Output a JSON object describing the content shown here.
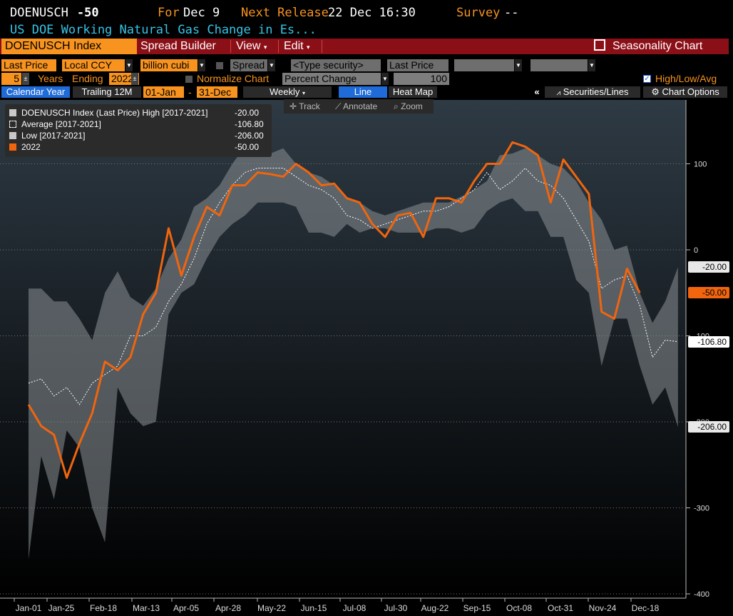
{
  "header": {
    "ticker": "DOENUSCH",
    "value": "-50",
    "for_label": "For",
    "for_date": "Dec 9",
    "next_label": "Next Release",
    "next_date": "22 Dec 16:30",
    "survey_label": "Survey",
    "survey_value": "--",
    "description": "US DOE Working Natural Gas Change in Es..."
  },
  "toolbar": {
    "index_field": "DOENUSCH Index",
    "spread_builder": "Spread Builder",
    "view": "View",
    "edit": "Edit",
    "seasonality": "Seasonality Chart",
    "field": "Last Price",
    "currency": "Local CCY",
    "units": "billion cubi",
    "spread": "Spread",
    "type_security": "<Type security>",
    "last_price_2": "Last Price",
    "years_n": "5",
    "years_label": "Years",
    "ending_label": "Ending",
    "ending_year": "2022",
    "normalize_label": "Normalize Chart",
    "percent_change": "Percent Change",
    "norm_value": "100",
    "hla_label": "High/Low/Avg",
    "calendar_year": "Calendar Year",
    "trailing": "Trailing 12M",
    "start_date": "01-Jan",
    "dash": "-",
    "end_date": "31-Dec",
    "weekly": "Weekly",
    "line": "Line",
    "heat_map": "Heat Map",
    "collapse": "«",
    "securities_lines": "Securities/Lines",
    "chart_options": "Chart Options",
    "track": "Track",
    "annotate": "Annotate",
    "zoom": "Zoom"
  },
  "legend": [
    {
      "label": "DOENUSCH Index (Last Price) High [2017-2021]",
      "value": "-20.00",
      "color": "#c8c8c8"
    },
    {
      "label": "Average  [2017-2021]",
      "value": "-106.80",
      "color": "#ffffff"
    },
    {
      "label": "Low  [2017-2021]",
      "value": "-206.00",
      "color": "#c8c8c8"
    },
    {
      "label": "2022",
      "value": "-50.00",
      "color": "#f0650e"
    }
  ],
  "badges": [
    {
      "text": "-20.00",
      "value": -20,
      "bg": "#e8e8e8",
      "fg": "#000"
    },
    {
      "text": "-50.00",
      "value": -50,
      "bg": "#f0650e",
      "fg": "#000"
    },
    {
      "text": "-106.80",
      "value": -106.8,
      "bg": "#ffffff",
      "fg": "#000"
    },
    {
      "text": "-206.00",
      "value": -206,
      "bg": "#e8e8e8",
      "fg": "#000"
    }
  ],
  "chart_data": {
    "type": "line",
    "x_tick_labels": [
      "Jan-01",
      "Jan-25",
      "Feb-18",
      "Mar-13",
      "Apr-05",
      "Apr-28",
      "May-22",
      "Jun-15",
      "Jul-08",
      "Jul-30",
      "Aug-22",
      "Sep-15",
      "Oct-08",
      "Oct-31",
      "Nov-24",
      "Dec-18"
    ],
    "y_ticks": [
      100,
      0,
      -100,
      -200,
      -300,
      -400
    ],
    "y_tick_labels": [
      "100",
      "0",
      "-100",
      "-200",
      "-300",
      "-400"
    ],
    "ylim": [
      -400,
      150
    ],
    "weeks": 52,
    "grid": true,
    "legend_position": "top-left",
    "series": [
      {
        "name": "High [2017-2021]",
        "values": [
          -45,
          -45,
          -60,
          -60,
          -80,
          -105,
          -50,
          -25,
          -55,
          -65,
          -45,
          -10,
          12,
          50,
          60,
          75,
          100,
          120,
          115,
          112,
          118,
          100,
          90,
          85,
          75,
          60,
          55,
          45,
          40,
          45,
          50,
          55,
          55,
          55,
          62,
          70,
          80,
          110,
          112,
          118,
          110,
          100,
          95,
          80,
          55,
          35,
          0,
          5,
          -50,
          -85,
          -60,
          -20
        ]
      },
      {
        "name": "Average [2017-2021]",
        "values": [
          -155,
          -150,
          -170,
          -160,
          -180,
          -155,
          -145,
          -135,
          -100,
          -100,
          -90,
          -60,
          -40,
          -10,
          30,
          55,
          75,
          90,
          95,
          95,
          95,
          85,
          75,
          70,
          60,
          40,
          35,
          25,
          30,
          35,
          40,
          45,
          45,
          50,
          60,
          70,
          90,
          70,
          80,
          95,
          80,
          75,
          60,
          35,
          10,
          -45,
          -35,
          -30,
          -65,
          -125,
          -105,
          -106.8
        ]
      },
      {
        "name": "Low [2017-2021]",
        "values": [
          -360,
          -240,
          -290,
          -210,
          -230,
          -300,
          -340,
          -160,
          -190,
          -205,
          -200,
          -75,
          -50,
          -40,
          -10,
          15,
          30,
          40,
          55,
          55,
          55,
          50,
          20,
          20,
          15,
          30,
          20,
          25,
          25,
          20,
          20,
          20,
          25,
          25,
          20,
          25,
          45,
          55,
          60,
          45,
          45,
          15,
          15,
          -35,
          -50,
          -135,
          -80,
          -80,
          -135,
          -180,
          -160,
          -206
        ]
      },
      {
        "name": "2022",
        "values": [
          -180,
          -205,
          -215,
          -265,
          -225,
          -190,
          -130,
          -140,
          -125,
          -75,
          -50,
          25,
          -30,
          15,
          50,
          40,
          75,
          75,
          90,
          88,
          85,
          100,
          90,
          75,
          77,
          60,
          55,
          30,
          15,
          40,
          43,
          15,
          60,
          60,
          55,
          80,
          100,
          100,
          125,
          120,
          110,
          55,
          105,
          85,
          65,
          -72,
          -80,
          -22,
          -50
        ]
      }
    ]
  }
}
